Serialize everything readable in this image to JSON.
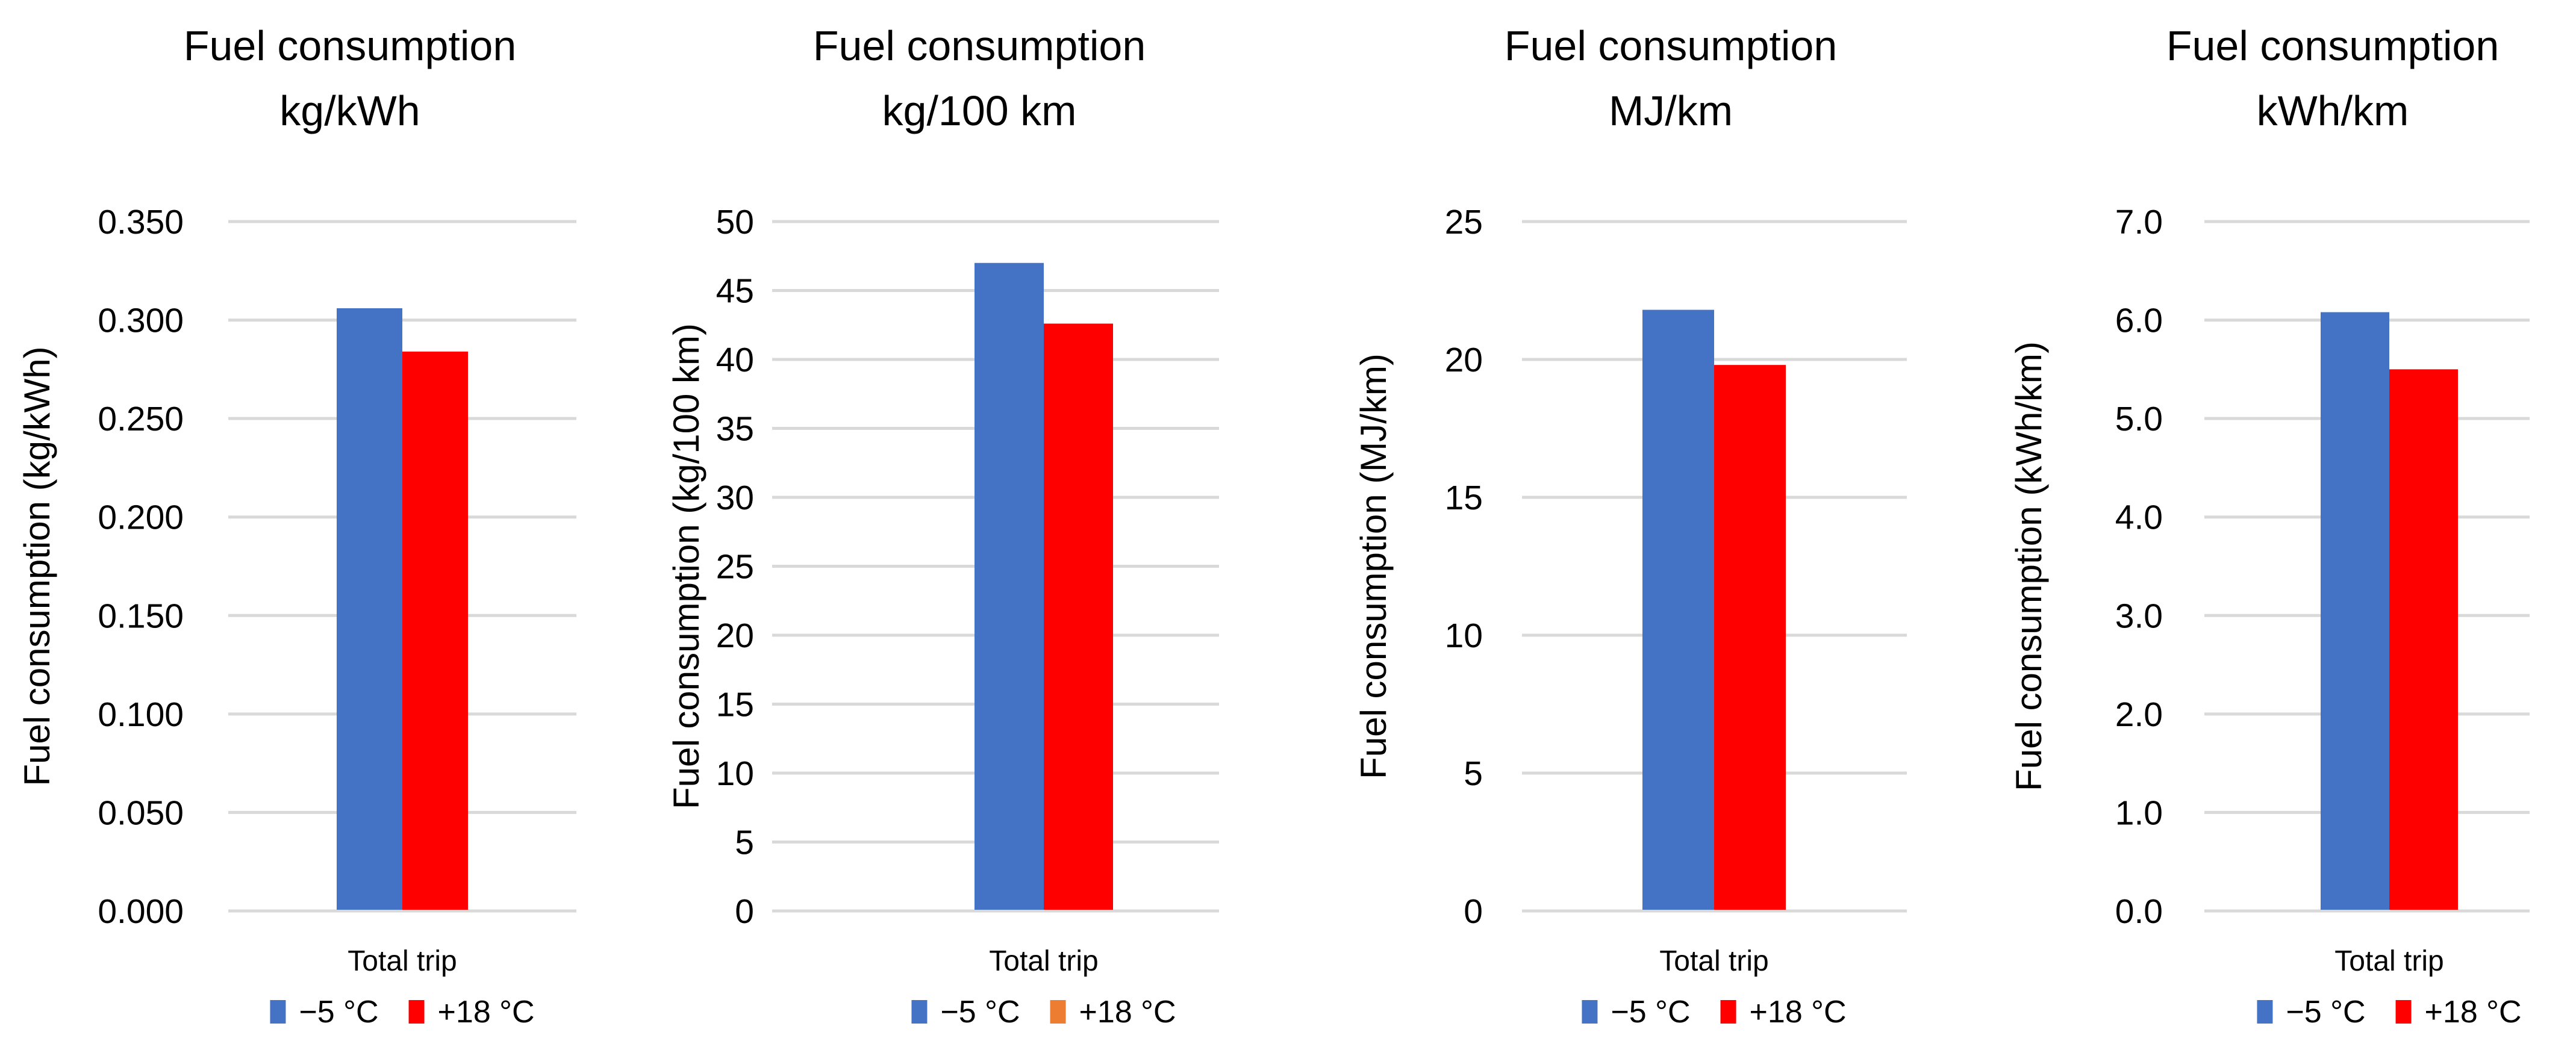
{
  "chart_data": [
    {
      "type": "bar",
      "title": [
        "Fuel consumption",
        "kg/kWh"
      ],
      "ylabel": "Fuel consumption (kg/kWh)",
      "categories": [
        "Total trip"
      ],
      "ylim": [
        0,
        0.35
      ],
      "yticks": [
        "0.000",
        "0.050",
        "0.100",
        "0.150",
        "0.200",
        "0.250",
        "0.300",
        "0.350"
      ],
      "series": [
        {
          "name": "−5 °C",
          "values": [
            0.306
          ],
          "color": "#4472C4",
          "legend_color": "#4472C4"
        },
        {
          "name": "+18 °C",
          "values": [
            0.284
          ],
          "color": "#FF0000",
          "legend_color": "#FF0000"
        }
      ],
      "grid": true,
      "legend": "bottom"
    },
    {
      "type": "bar",
      "title": [
        "Fuel consumption",
        "kg/100 km"
      ],
      "ylabel": "Fuel consumption (kg/100 km)",
      "categories": [
        "Total trip"
      ],
      "ylim": [
        0,
        50
      ],
      "yticks": [
        "0",
        "5",
        "10",
        "15",
        "20",
        "25",
        "30",
        "35",
        "40",
        "45",
        "50"
      ],
      "series": [
        {
          "name": "−5 °C",
          "values": [
            47.0
          ],
          "color": "#4472C4",
          "legend_color": "#4472C4"
        },
        {
          "name": "+18 °C",
          "values": [
            42.6
          ],
          "color": "#FF0000",
          "legend_color": "#ED7D31"
        }
      ],
      "grid": true,
      "legend": "bottom"
    },
    {
      "type": "bar",
      "title": [
        "Fuel consumption",
        "MJ/km"
      ],
      "ylabel": "Fuel consumption (MJ/km)",
      "categories": [
        "Total trip"
      ],
      "ylim": [
        0,
        25
      ],
      "yticks": [
        "0",
        "5",
        "10",
        "15",
        "20",
        "25"
      ],
      "series": [
        {
          "name": "−5 °C",
          "values": [
            21.8
          ],
          "color": "#4472C4",
          "legend_color": "#4472C4"
        },
        {
          "name": "+18 °C",
          "values": [
            19.8
          ],
          "color": "#FF0000",
          "legend_color": "#FF0000"
        }
      ],
      "grid": true,
      "legend": "bottom"
    },
    {
      "type": "bar",
      "title": [
        "Fuel consumption",
        "kWh/km"
      ],
      "ylabel": "Fuel consumption (kWh/km)",
      "categories": [
        "Total trip"
      ],
      "ylim": [
        0,
        7
      ],
      "yticks": [
        "0.0",
        "1.0",
        "2.0",
        "3.0",
        "4.0",
        "5.0",
        "6.0",
        "7.0"
      ],
      "series": [
        {
          "name": "−5 °C",
          "values": [
            6.08
          ],
          "color": "#4472C4",
          "legend_color": "#4472C4"
        },
        {
          "name": "+18 °C",
          "values": [
            5.5
          ],
          "color": "#FF0000",
          "legend_color": "#FF0000"
        }
      ],
      "grid": true,
      "legend": "bottom"
    }
  ]
}
